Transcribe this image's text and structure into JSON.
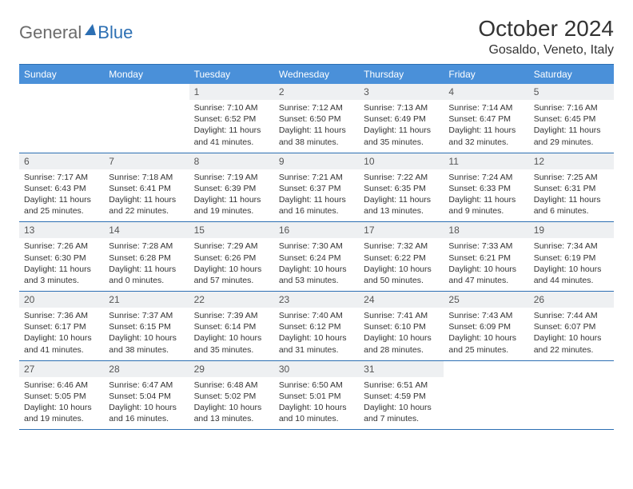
{
  "logo": {
    "text1": "General",
    "text2": "Blue"
  },
  "title": "October 2024",
  "location": "Gosaldo, Veneto, Italy",
  "colors": {
    "header_bg": "#4a90d9",
    "header_text": "#ffffff",
    "rule": "#2c6fb3",
    "daynum_bg": "#eef0f2",
    "text": "#333333"
  },
  "day_names": [
    "Sunday",
    "Monday",
    "Tuesday",
    "Wednesday",
    "Thursday",
    "Friday",
    "Saturday"
  ],
  "weeks": [
    [
      {
        "day": "",
        "sunrise": "",
        "sunset": "",
        "daylight1": "",
        "daylight2": ""
      },
      {
        "day": "",
        "sunrise": "",
        "sunset": "",
        "daylight1": "",
        "daylight2": ""
      },
      {
        "day": "1",
        "sunrise": "Sunrise: 7:10 AM",
        "sunset": "Sunset: 6:52 PM",
        "daylight1": "Daylight: 11 hours",
        "daylight2": "and 41 minutes."
      },
      {
        "day": "2",
        "sunrise": "Sunrise: 7:12 AM",
        "sunset": "Sunset: 6:50 PM",
        "daylight1": "Daylight: 11 hours",
        "daylight2": "and 38 minutes."
      },
      {
        "day": "3",
        "sunrise": "Sunrise: 7:13 AM",
        "sunset": "Sunset: 6:49 PM",
        "daylight1": "Daylight: 11 hours",
        "daylight2": "and 35 minutes."
      },
      {
        "day": "4",
        "sunrise": "Sunrise: 7:14 AM",
        "sunset": "Sunset: 6:47 PM",
        "daylight1": "Daylight: 11 hours",
        "daylight2": "and 32 minutes."
      },
      {
        "day": "5",
        "sunrise": "Sunrise: 7:16 AM",
        "sunset": "Sunset: 6:45 PM",
        "daylight1": "Daylight: 11 hours",
        "daylight2": "and 29 minutes."
      }
    ],
    [
      {
        "day": "6",
        "sunrise": "Sunrise: 7:17 AM",
        "sunset": "Sunset: 6:43 PM",
        "daylight1": "Daylight: 11 hours",
        "daylight2": "and 25 minutes."
      },
      {
        "day": "7",
        "sunrise": "Sunrise: 7:18 AM",
        "sunset": "Sunset: 6:41 PM",
        "daylight1": "Daylight: 11 hours",
        "daylight2": "and 22 minutes."
      },
      {
        "day": "8",
        "sunrise": "Sunrise: 7:19 AM",
        "sunset": "Sunset: 6:39 PM",
        "daylight1": "Daylight: 11 hours",
        "daylight2": "and 19 minutes."
      },
      {
        "day": "9",
        "sunrise": "Sunrise: 7:21 AM",
        "sunset": "Sunset: 6:37 PM",
        "daylight1": "Daylight: 11 hours",
        "daylight2": "and 16 minutes."
      },
      {
        "day": "10",
        "sunrise": "Sunrise: 7:22 AM",
        "sunset": "Sunset: 6:35 PM",
        "daylight1": "Daylight: 11 hours",
        "daylight2": "and 13 minutes."
      },
      {
        "day": "11",
        "sunrise": "Sunrise: 7:24 AM",
        "sunset": "Sunset: 6:33 PM",
        "daylight1": "Daylight: 11 hours",
        "daylight2": "and 9 minutes."
      },
      {
        "day": "12",
        "sunrise": "Sunrise: 7:25 AM",
        "sunset": "Sunset: 6:31 PM",
        "daylight1": "Daylight: 11 hours",
        "daylight2": "and 6 minutes."
      }
    ],
    [
      {
        "day": "13",
        "sunrise": "Sunrise: 7:26 AM",
        "sunset": "Sunset: 6:30 PM",
        "daylight1": "Daylight: 11 hours",
        "daylight2": "and 3 minutes."
      },
      {
        "day": "14",
        "sunrise": "Sunrise: 7:28 AM",
        "sunset": "Sunset: 6:28 PM",
        "daylight1": "Daylight: 11 hours",
        "daylight2": "and 0 minutes."
      },
      {
        "day": "15",
        "sunrise": "Sunrise: 7:29 AM",
        "sunset": "Sunset: 6:26 PM",
        "daylight1": "Daylight: 10 hours",
        "daylight2": "and 57 minutes."
      },
      {
        "day": "16",
        "sunrise": "Sunrise: 7:30 AM",
        "sunset": "Sunset: 6:24 PM",
        "daylight1": "Daylight: 10 hours",
        "daylight2": "and 53 minutes."
      },
      {
        "day": "17",
        "sunrise": "Sunrise: 7:32 AM",
        "sunset": "Sunset: 6:22 PM",
        "daylight1": "Daylight: 10 hours",
        "daylight2": "and 50 minutes."
      },
      {
        "day": "18",
        "sunrise": "Sunrise: 7:33 AM",
        "sunset": "Sunset: 6:21 PM",
        "daylight1": "Daylight: 10 hours",
        "daylight2": "and 47 minutes."
      },
      {
        "day": "19",
        "sunrise": "Sunrise: 7:34 AM",
        "sunset": "Sunset: 6:19 PM",
        "daylight1": "Daylight: 10 hours",
        "daylight2": "and 44 minutes."
      }
    ],
    [
      {
        "day": "20",
        "sunrise": "Sunrise: 7:36 AM",
        "sunset": "Sunset: 6:17 PM",
        "daylight1": "Daylight: 10 hours",
        "daylight2": "and 41 minutes."
      },
      {
        "day": "21",
        "sunrise": "Sunrise: 7:37 AM",
        "sunset": "Sunset: 6:15 PM",
        "daylight1": "Daylight: 10 hours",
        "daylight2": "and 38 minutes."
      },
      {
        "day": "22",
        "sunrise": "Sunrise: 7:39 AM",
        "sunset": "Sunset: 6:14 PM",
        "daylight1": "Daylight: 10 hours",
        "daylight2": "and 35 minutes."
      },
      {
        "day": "23",
        "sunrise": "Sunrise: 7:40 AM",
        "sunset": "Sunset: 6:12 PM",
        "daylight1": "Daylight: 10 hours",
        "daylight2": "and 31 minutes."
      },
      {
        "day": "24",
        "sunrise": "Sunrise: 7:41 AM",
        "sunset": "Sunset: 6:10 PM",
        "daylight1": "Daylight: 10 hours",
        "daylight2": "and 28 minutes."
      },
      {
        "day": "25",
        "sunrise": "Sunrise: 7:43 AM",
        "sunset": "Sunset: 6:09 PM",
        "daylight1": "Daylight: 10 hours",
        "daylight2": "and 25 minutes."
      },
      {
        "day": "26",
        "sunrise": "Sunrise: 7:44 AM",
        "sunset": "Sunset: 6:07 PM",
        "daylight1": "Daylight: 10 hours",
        "daylight2": "and 22 minutes."
      }
    ],
    [
      {
        "day": "27",
        "sunrise": "Sunrise: 6:46 AM",
        "sunset": "Sunset: 5:05 PM",
        "daylight1": "Daylight: 10 hours",
        "daylight2": "and 19 minutes."
      },
      {
        "day": "28",
        "sunrise": "Sunrise: 6:47 AM",
        "sunset": "Sunset: 5:04 PM",
        "daylight1": "Daylight: 10 hours",
        "daylight2": "and 16 minutes."
      },
      {
        "day": "29",
        "sunrise": "Sunrise: 6:48 AM",
        "sunset": "Sunset: 5:02 PM",
        "daylight1": "Daylight: 10 hours",
        "daylight2": "and 13 minutes."
      },
      {
        "day": "30",
        "sunrise": "Sunrise: 6:50 AM",
        "sunset": "Sunset: 5:01 PM",
        "daylight1": "Daylight: 10 hours",
        "daylight2": "and 10 minutes."
      },
      {
        "day": "31",
        "sunrise": "Sunrise: 6:51 AM",
        "sunset": "Sunset: 4:59 PM",
        "daylight1": "Daylight: 10 hours",
        "daylight2": "and 7 minutes."
      },
      {
        "day": "",
        "sunrise": "",
        "sunset": "",
        "daylight1": "",
        "daylight2": ""
      },
      {
        "day": "",
        "sunrise": "",
        "sunset": "",
        "daylight1": "",
        "daylight2": ""
      }
    ]
  ]
}
